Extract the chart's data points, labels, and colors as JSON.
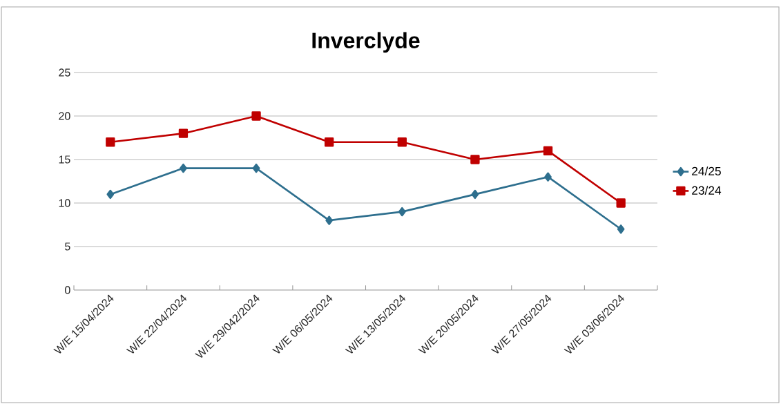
{
  "chart_data": {
    "type": "line",
    "title": "Inverclyde",
    "categories": [
      "W/E 15/04/2024",
      "W/E 22/04/2024",
      "W/E 29/042/2024",
      "W/E 06/05/2024",
      "W/E 13/05/2024",
      "W/E 20/05/2024",
      "W/E 27/05/2024",
      "W/E 03/06/2024"
    ],
    "series": [
      {
        "name": "24/25",
        "color": "#2e6f8e",
        "marker": "diamond",
        "values": [
          11,
          14,
          14,
          8,
          9,
          11,
          13,
          7
        ]
      },
      {
        "name": "23/24",
        "color": "#c00000",
        "marker": "square",
        "values": [
          17,
          18,
          20,
          17,
          17,
          15,
          16,
          10
        ]
      }
    ],
    "ylim": [
      0,
      25
    ],
    "yticks": [
      0,
      5,
      10,
      15,
      20,
      25
    ],
    "grid": "y",
    "legend": "right",
    "line_style": "solid"
  }
}
